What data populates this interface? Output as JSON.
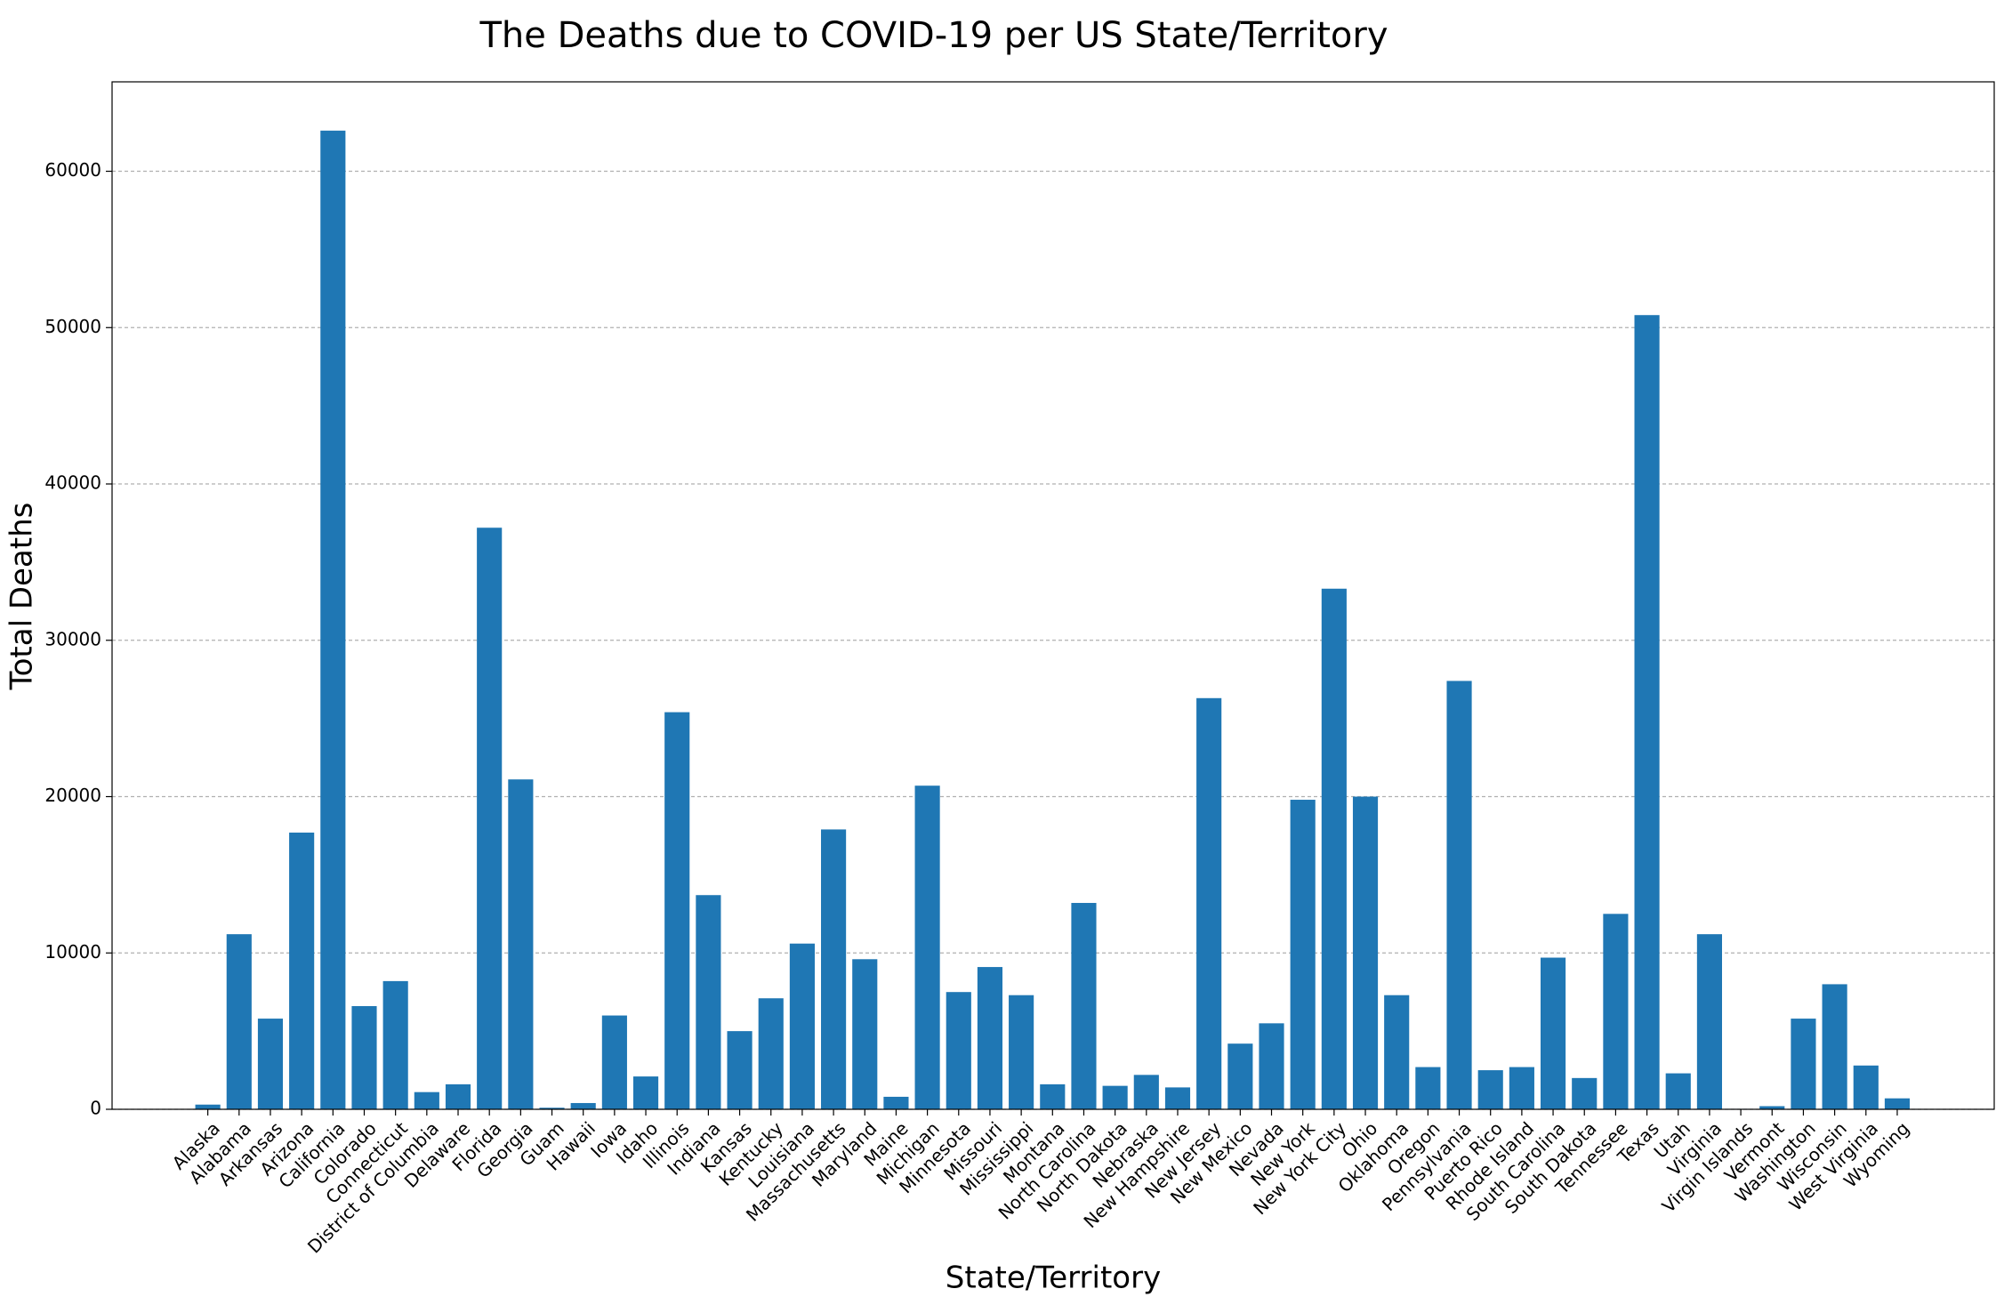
{
  "chart_data": {
    "type": "bar",
    "title": "The Deaths due to COVID-19 per US State/Territory",
    "xlabel": "State/Territory",
    "ylabel": "Total Deaths",
    "color": "#1f77b4",
    "grid": true,
    "categories": [
      "Alaska",
      "Alabama",
      "Arkansas",
      "Arizona",
      "California",
      "Colorado",
      "Connecticut",
      "District of Columbia",
      "Delaware",
      "Florida",
      "Georgia",
      "Guam",
      "Hawaii",
      "Iowa",
      "Idaho",
      "Illinois",
      "Indiana",
      "Kansas",
      "Kentucky",
      "Louisiana",
      "Massachusetts",
      "Maryland",
      "Maine",
      "Michigan",
      "Minnesota",
      "Missouri",
      "Mississippi",
      "Montana",
      "North Carolina",
      "North Dakota",
      "Nebraska",
      "New Hampshire",
      "New Jersey",
      "New Mexico",
      "Nevada",
      "New York",
      "New York City",
      "Ohio",
      "Oklahoma",
      "Oregon",
      "Pennsylvania",
      "Puerto Rico",
      "Rhode Island",
      "South Carolina",
      "South Dakota",
      "Tennessee",
      "Texas",
      "Utah",
      "Virginia",
      "Virgin Islands",
      "Vermont",
      "Washington",
      "Wisconsin",
      "West Virginia",
      "Wyoming"
    ],
    "values": [
      300,
      11200,
      5800,
      17700,
      62600,
      6600,
      8200,
      1100,
      1600,
      37200,
      21100,
      100,
      400,
      6000,
      2100,
      25400,
      13700,
      5000,
      7100,
      10600,
      17900,
      9600,
      800,
      20700,
      7500,
      9100,
      7300,
      1600,
      13200,
      1500,
      2200,
      1400,
      26300,
      4200,
      5500,
      19800,
      33300,
      20000,
      7300,
      2700,
      27400,
      2500,
      2700,
      9700,
      2000,
      12500,
      50800,
      2300,
      11200,
      30,
      200,
      5800,
      8000,
      2800,
      700
    ],
    "ylim": [
      0,
      65720
    ],
    "yticks": [
      0,
      10000,
      20000,
      30000,
      40000,
      50000,
      60000
    ]
  }
}
